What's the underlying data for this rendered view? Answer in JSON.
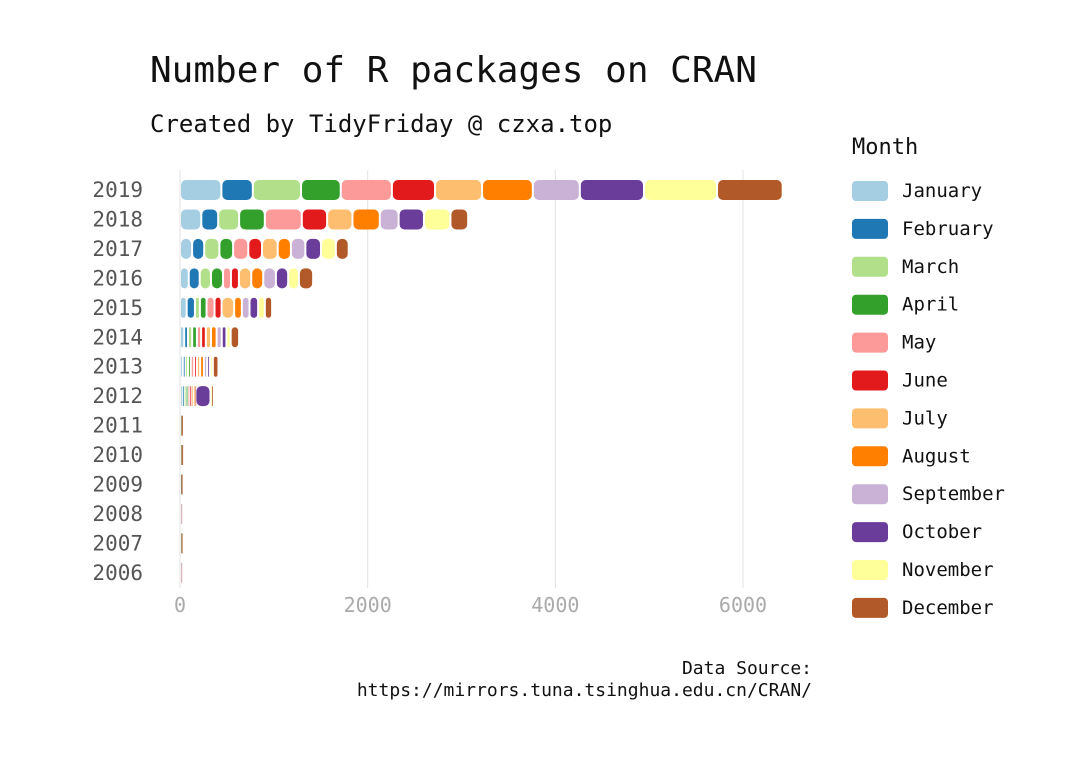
{
  "chart_data": {
    "type": "bar",
    "orientation": "horizontal",
    "stacked": true,
    "title": "Number of R packages on CRAN",
    "subtitle": "Created by TidyFriday @ czxa.top",
    "caption_line1": "Data Source:",
    "caption_line2": "https://mirrors.tuna.tsinghua.edu.cn/CRAN/",
    "legend_title": "Month",
    "legend_position": "right",
    "grid": "vertical major lines",
    "xlim": [
      0,
      6600
    ],
    "x_ticks": [
      "0",
      "2000",
      "4000",
      "6000"
    ],
    "x_tick_values": [
      0,
      2000,
      4000,
      6000
    ],
    "categories": [
      "2019",
      "2018",
      "2017",
      "2016",
      "2015",
      "2014",
      "2013",
      "2012",
      "2011",
      "2010",
      "2009",
      "2008",
      "2007",
      "2006"
    ],
    "series": [
      {
        "name": "January",
        "color": "#A6CEE3",
        "values": [
          441,
          227,
          129,
          93,
          71,
          45,
          30,
          20,
          1,
          2,
          1,
          1,
          1,
          1
        ]
      },
      {
        "name": "February",
        "color": "#1F78B4",
        "values": [
          335,
          180,
          129,
          117,
          88,
          40,
          25,
          20,
          1,
          1,
          1,
          0,
          1,
          0
        ]
      },
      {
        "name": "March",
        "color": "#B2DF8A",
        "values": [
          514,
          223,
          162,
          120,
          53,
          45,
          30,
          20,
          1,
          1,
          1,
          1,
          1,
          1
        ]
      },
      {
        "name": "April",
        "color": "#33A02C",
        "values": [
          423,
          274,
          146,
          128,
          71,
          50,
          30,
          20,
          1,
          2,
          1,
          0,
          1,
          0
        ]
      },
      {
        "name": "May",
        "color": "#FB9A99",
        "values": [
          545,
          394,
          162,
          85,
          85,
          45,
          35,
          20,
          1,
          1,
          1,
          1,
          1,
          1
        ]
      },
      {
        "name": "June",
        "color": "#E31A1C",
        "values": [
          460,
          270,
          146,
          85,
          75,
          50,
          30,
          20,
          1,
          1,
          0,
          0,
          1,
          0
        ]
      },
      {
        "name": "July",
        "color": "#FDBF6F",
        "values": [
          501,
          270,
          167,
          131,
          134,
          55,
          35,
          25,
          1,
          2,
          1,
          1,
          1,
          1
        ]
      },
      {
        "name": "August",
        "color": "#FF7F00",
        "values": [
          541,
          291,
          141,
          128,
          82,
          60,
          40,
          10,
          1,
          1,
          1,
          0,
          0,
          0
        ]
      },
      {
        "name": "September",
        "color": "#CAB2D6",
        "values": [
          501,
          201,
          154,
          135,
          82,
          55,
          35,
          10,
          1,
          1,
          0,
          1,
          1,
          1
        ]
      },
      {
        "name": "October",
        "color": "#6A3D9A",
        "values": [
          684,
          270,
          167,
          131,
          92,
          50,
          30,
          160,
          1,
          1,
          1,
          0,
          0,
          0
        ]
      },
      {
        "name": "November",
        "color": "#FFFF99",
        "values": [
          778,
          282,
          158,
          114,
          71,
          45,
          30,
          5,
          1,
          1,
          0,
          0,
          0,
          0
        ]
      },
      {
        "name": "December",
        "color": "#B15928",
        "values": [
          700,
          189,
          137,
          152,
          78,
          90,
          60,
          5,
          1,
          1,
          1,
          0,
          1,
          0
        ]
      }
    ]
  }
}
